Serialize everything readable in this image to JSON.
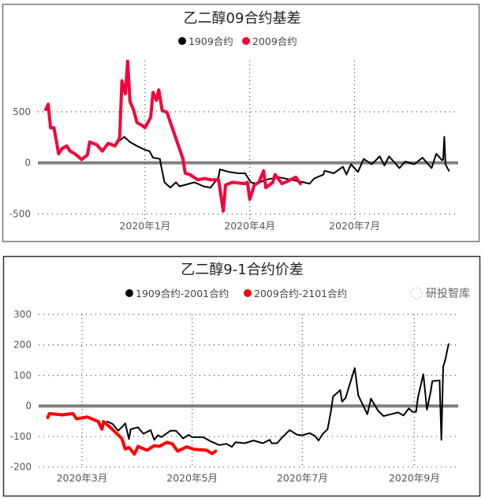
{
  "chart_data": [
    {
      "type": "line",
      "title": "乙二醇09合约基差",
      "xlabel": "",
      "ylabel": "",
      "xlim": [
        "2019-09-30",
        "2020-09-27"
      ],
      "ylim": [
        -550,
        1000
      ],
      "yticks": [
        500,
        0,
        -500
      ],
      "xticks": [
        {
          "date": "2020-01-01",
          "label": "2020年1月"
        },
        {
          "date": "2020-04-01",
          "label": "2020年4月"
        },
        {
          "date": "2020-07-01",
          "label": "2020年7月"
        }
      ],
      "grid": true,
      "legend_position": "top",
      "zero_line_color": "#808080",
      "series": [
        {
          "name": "1909合约",
          "color": "#000000",
          "points": [
            [
              "2019-12-10",
              217
            ],
            [
              "2019-12-14",
              255
            ],
            [
              "2019-12-19",
              204
            ],
            [
              "2019-12-25",
              166
            ],
            [
              "2020-01-01",
              128
            ],
            [
              "2020-01-05",
              115
            ],
            [
              "2020-01-08",
              51
            ],
            [
              "2020-01-14",
              38
            ],
            [
              "2020-01-15",
              -26
            ],
            [
              "2020-01-18",
              -191
            ],
            [
              "2020-01-23",
              -242
            ],
            [
              "2020-01-28",
              -191
            ],
            [
              "2020-01-31",
              -230
            ],
            [
              "2020-02-13",
              -191
            ],
            [
              "2020-02-21",
              -230
            ],
            [
              "2020-02-27",
              -242
            ],
            [
              "2020-03-05",
              -140
            ],
            [
              "2020-03-06",
              -64
            ],
            [
              "2020-03-14",
              -89
            ],
            [
              "2020-03-22",
              -102
            ],
            [
              "2020-03-28",
              -102
            ],
            [
              "2020-04-02",
              -191
            ],
            [
              "2020-04-07",
              -204
            ],
            [
              "2020-04-15",
              -166
            ],
            [
              "2020-04-26",
              -140
            ],
            [
              "2020-05-07",
              -166
            ],
            [
              "2020-05-18",
              -191
            ],
            [
              "2020-05-23",
              -204
            ],
            [
              "2020-05-27",
              -153
            ],
            [
              "2020-06-04",
              -115
            ],
            [
              "2020-06-05",
              -77
            ],
            [
              "2020-06-13",
              -102
            ],
            [
              "2020-06-21",
              -38
            ],
            [
              "2020-06-24",
              -115
            ],
            [
              "2020-06-28",
              -13
            ],
            [
              "2020-07-04",
              -89
            ],
            [
              "2020-07-09",
              38
            ],
            [
              "2020-07-16",
              -13
            ],
            [
              "2020-07-23",
              64
            ],
            [
              "2020-07-27",
              -26
            ],
            [
              "2020-07-31",
              64
            ],
            [
              "2020-08-09",
              -51
            ],
            [
              "2020-08-14",
              13
            ],
            [
              "2020-08-22",
              -13
            ],
            [
              "2020-08-29",
              51
            ],
            [
              "2020-09-06",
              -51
            ],
            [
              "2020-09-10",
              89
            ],
            [
              "2020-09-15",
              26
            ],
            [
              "2020-09-16",
              30
            ],
            [
              "2020-09-17",
              255
            ],
            [
              "2020-09-18",
              -13
            ],
            [
              "2020-09-21",
              -77
            ]
          ]
        },
        {
          "name": "2009合约",
          "color": "#f5003a",
          "points": [
            [
              "2019-10-07",
              523
            ],
            [
              "2019-10-09",
              574
            ],
            [
              "2019-10-11",
              344
            ],
            [
              "2019-10-14",
              344
            ],
            [
              "2019-10-16",
              217
            ],
            [
              "2019-10-18",
              89
            ],
            [
              "2019-10-21",
              140
            ],
            [
              "2019-10-25",
              166
            ],
            [
              "2019-10-28",
              115
            ],
            [
              "2019-11-01",
              89
            ],
            [
              "2019-11-07",
              33
            ],
            [
              "2019-11-12",
              77
            ],
            [
              "2019-11-14",
              204
            ],
            [
              "2019-11-20",
              179
            ],
            [
              "2019-11-25",
              115
            ],
            [
              "2019-11-30",
              191
            ],
            [
              "2019-12-06",
              166
            ],
            [
              "2019-12-10",
              242
            ],
            [
              "2019-12-12",
              803
            ],
            [
              "2019-12-15",
              676
            ],
            [
              "2019-12-17",
              995
            ],
            [
              "2019-12-19",
              599
            ],
            [
              "2019-12-22",
              523
            ],
            [
              "2019-12-25",
              395
            ],
            [
              "2019-12-29",
              370
            ],
            [
              "2020-01-01",
              344
            ],
            [
              "2020-01-06",
              446
            ],
            [
              "2020-01-08",
              689
            ],
            [
              "2020-01-11",
              612
            ],
            [
              "2020-01-13",
              714
            ],
            [
              "2020-01-16",
              510
            ],
            [
              "2020-01-20",
              497
            ],
            [
              "2020-01-22",
              434
            ],
            [
              "2020-02-03",
              38
            ],
            [
              "2020-02-05",
              -102
            ],
            [
              "2020-02-09",
              -115
            ],
            [
              "2020-02-16",
              -166
            ],
            [
              "2020-02-22",
              -153
            ],
            [
              "2020-02-27",
              -166
            ],
            [
              "2020-03-05",
              -166
            ],
            [
              "2020-03-09",
              -472
            ],
            [
              "2020-03-11",
              -217
            ],
            [
              "2020-03-17",
              -191
            ],
            [
              "2020-03-28",
              -204
            ],
            [
              "2020-03-30",
              -191
            ],
            [
              "2020-04-01",
              -357
            ],
            [
              "2020-04-05",
              -217
            ],
            [
              "2020-04-09",
              -191
            ],
            [
              "2020-04-13",
              -77
            ],
            [
              "2020-04-15",
              -242
            ],
            [
              "2020-04-21",
              -191
            ],
            [
              "2020-04-23",
              -115
            ],
            [
              "2020-04-29",
              -204
            ],
            [
              "2020-05-04",
              -179
            ],
            [
              "2020-05-11",
              -140
            ],
            [
              "2020-05-15",
              -204
            ]
          ]
        }
      ]
    },
    {
      "type": "line",
      "title": "乙二醇9-1合约价差",
      "xlabel": "",
      "ylabel": "",
      "xlim": [
        "2020-02-06",
        "2020-09-24"
      ],
      "ylim": [
        -200,
        300
      ],
      "yticks": [
        300,
        200,
        100,
        0,
        -100,
        -200
      ],
      "xticks": [
        {
          "date": "2020-03-01",
          "label": "2020年3月"
        },
        {
          "date": "2020-05-01",
          "label": "2020年5月"
        },
        {
          "date": "2020-07-01",
          "label": "2020年7月"
        },
        {
          "date": "2020-09-01",
          "label": "2020年9月"
        }
      ],
      "grid": true,
      "legend_position": "top",
      "zero_line_color": "#808080",
      "series": [
        {
          "name": "1909合约-2001合约",
          "color": "#000000",
          "points": [
            [
              "2020-03-15",
              -51
            ],
            [
              "2020-03-18",
              -59
            ],
            [
              "2020-03-21",
              -81
            ],
            [
              "2020-03-23",
              -70
            ],
            [
              "2020-03-25",
              -57
            ],
            [
              "2020-03-27",
              -108
            ],
            [
              "2020-03-28",
              -76
            ],
            [
              "2020-04-01",
              -70
            ],
            [
              "2020-04-04",
              -91
            ],
            [
              "2020-04-08",
              -79
            ],
            [
              "2020-04-10",
              -111
            ],
            [
              "2020-04-12",
              -96
            ],
            [
              "2020-04-14",
              -102
            ],
            [
              "2020-04-19",
              -81
            ],
            [
              "2020-04-22",
              -81
            ],
            [
              "2020-04-26",
              -106
            ],
            [
              "2020-04-29",
              -95
            ],
            [
              "2020-05-01",
              -102
            ],
            [
              "2020-05-07",
              -102
            ],
            [
              "2020-05-11",
              -115
            ],
            [
              "2020-05-16",
              -128
            ],
            [
              "2020-05-20",
              -124
            ],
            [
              "2020-05-23",
              -134
            ],
            [
              "2020-05-25",
              -119
            ],
            [
              "2020-05-30",
              -122
            ],
            [
              "2020-06-04",
              -113
            ],
            [
              "2020-06-09",
              -122
            ],
            [
              "2020-06-13",
              -111
            ],
            [
              "2020-06-14",
              -122
            ],
            [
              "2020-06-17",
              -122
            ],
            [
              "2020-06-20",
              -102
            ],
            [
              "2020-06-24",
              -79
            ],
            [
              "2020-06-28",
              -94
            ],
            [
              "2020-07-01",
              -96
            ],
            [
              "2020-07-05",
              -89
            ],
            [
              "2020-07-08",
              -98
            ],
            [
              "2020-07-10",
              -113
            ],
            [
              "2020-07-12",
              -94
            ],
            [
              "2020-07-15",
              -76
            ],
            [
              "2020-07-17",
              -12
            ],
            [
              "2020-07-18",
              31
            ],
            [
              "2020-07-22",
              52
            ],
            [
              "2020-07-23",
              14
            ],
            [
              "2020-07-25",
              27
            ],
            [
              "2020-07-30",
              124
            ],
            [
              "2020-08-01",
              35
            ],
            [
              "2020-08-06",
              -27
            ],
            [
              "2020-08-08",
              24
            ],
            [
              "2020-08-12",
              -16
            ],
            [
              "2020-08-15",
              -33
            ],
            [
              "2020-08-19",
              -27
            ],
            [
              "2020-08-23",
              -21
            ],
            [
              "2020-08-26",
              -31
            ],
            [
              "2020-08-29",
              -8
            ],
            [
              "2020-08-31",
              -19
            ],
            [
              "2020-09-02",
              -19
            ],
            [
              "2020-09-03",
              27
            ],
            [
              "2020-09-06",
              104
            ],
            [
              "2020-09-08",
              -12
            ],
            [
              "2020-09-10",
              44
            ],
            [
              "2020-09-11",
              81
            ],
            [
              "2020-09-15",
              84
            ],
            [
              "2020-09-16",
              -111
            ],
            [
              "2020-09-17",
              130
            ],
            [
              "2020-09-18",
              147
            ],
            [
              "2020-09-20",
              203
            ]
          ]
        },
        {
          "name": "2009合约-2101合约",
          "color": "#ff0000",
          "points": [
            [
              "2020-02-11",
              -38
            ],
            [
              "2020-02-12",
              -25
            ],
            [
              "2020-02-19",
              -29
            ],
            [
              "2020-02-25",
              -25
            ],
            [
              "2020-02-27",
              -42
            ],
            [
              "2020-03-04",
              -36
            ],
            [
              "2020-03-10",
              -51
            ],
            [
              "2020-03-12",
              -76
            ],
            [
              "2020-03-13",
              -51
            ],
            [
              "2020-03-17",
              -72
            ],
            [
              "2020-03-23",
              -106
            ],
            [
              "2020-03-25",
              -141
            ],
            [
              "2020-03-27",
              -136
            ],
            [
              "2020-03-30",
              -158
            ],
            [
              "2020-04-01",
              -132
            ],
            [
              "2020-04-06",
              -145
            ],
            [
              "2020-04-10",
              -130
            ],
            [
              "2020-04-13",
              -132
            ],
            [
              "2020-04-17",
              -119
            ],
            [
              "2020-04-20",
              -124
            ],
            [
              "2020-04-23",
              -148
            ],
            [
              "2020-04-28",
              -134
            ],
            [
              "2020-05-02",
              -142
            ],
            [
              "2020-05-09",
              -145
            ],
            [
              "2020-05-12",
              -156
            ],
            [
              "2020-05-14",
              -148
            ]
          ]
        }
      ]
    }
  ],
  "watermark": "研投智库"
}
